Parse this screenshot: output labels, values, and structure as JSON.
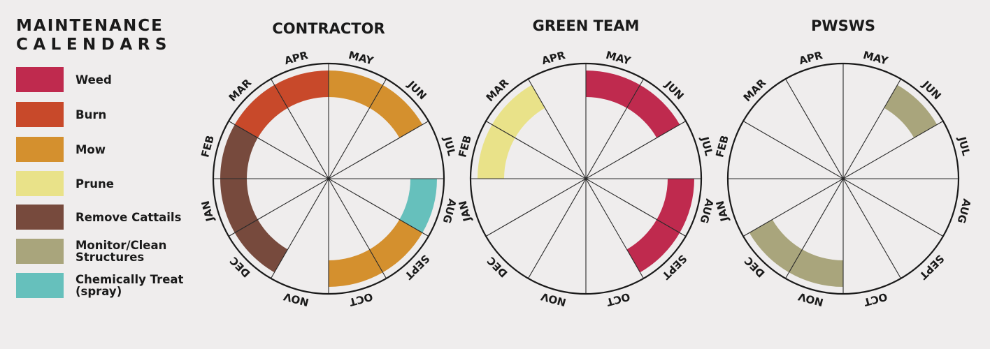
{
  "legend": {
    "title_line1": "MAINTENANCE",
    "title_line2": "CALENDARS",
    "items": [
      {
        "key": "weed",
        "lines": [
          "Weed"
        ],
        "color": "#bf2a4e"
      },
      {
        "key": "burn",
        "lines": [
          "Burn"
        ],
        "color": "#c8492a"
      },
      {
        "key": "mow",
        "lines": [
          "Mow"
        ],
        "color": "#d4902e"
      },
      {
        "key": "prune",
        "lines": [
          "Prune"
        ],
        "color": "#e9e289"
      },
      {
        "key": "cattails",
        "lines": [
          "Remove Cattails"
        ],
        "color": "#774a3d"
      },
      {
        "key": "monitor",
        "lines": [
          "Monitor/Clean",
          "Structures"
        ],
        "color": "#a9a57c"
      },
      {
        "key": "chemical",
        "lines": [
          "Chemically Treat",
          "(spray)"
        ],
        "color": "#66c0bc"
      }
    ]
  },
  "months": [
    "JAN",
    "FEB",
    "MAR",
    "APR",
    "MAY",
    "JUN",
    "JUL",
    "AUG",
    "SEPT",
    "OCT",
    "NOV",
    "DEC"
  ],
  "calendars": [
    {
      "title": "CONTRACTOR",
      "activities": [
        {
          "activity": "cattails",
          "start": "DEC",
          "end": "MAR"
        },
        {
          "activity": "burn",
          "start": "MAR",
          "end": "APR"
        },
        {
          "activity": "mow",
          "start": "MAY",
          "end": "JUN"
        },
        {
          "activity": "chemical",
          "start": "AUG",
          "end": "AUG"
        },
        {
          "activity": "mow",
          "start": "SEPT",
          "end": "OCT"
        }
      ]
    },
    {
      "title": "GREEN TEAM",
      "activities": [
        {
          "activity": "prune",
          "start": "FEB",
          "end": "MAR"
        },
        {
          "activity": "weed",
          "start": "MAY",
          "end": "JUN"
        },
        {
          "activity": "weed",
          "start": "AUG",
          "end": "SEPT"
        }
      ]
    },
    {
      "title": "PWSWS",
      "activities": [
        {
          "activity": "monitor",
          "start": "JUN",
          "end": "JUN"
        },
        {
          "activity": "monitor",
          "start": "NOV",
          "end": "DEC"
        }
      ]
    }
  ]
}
